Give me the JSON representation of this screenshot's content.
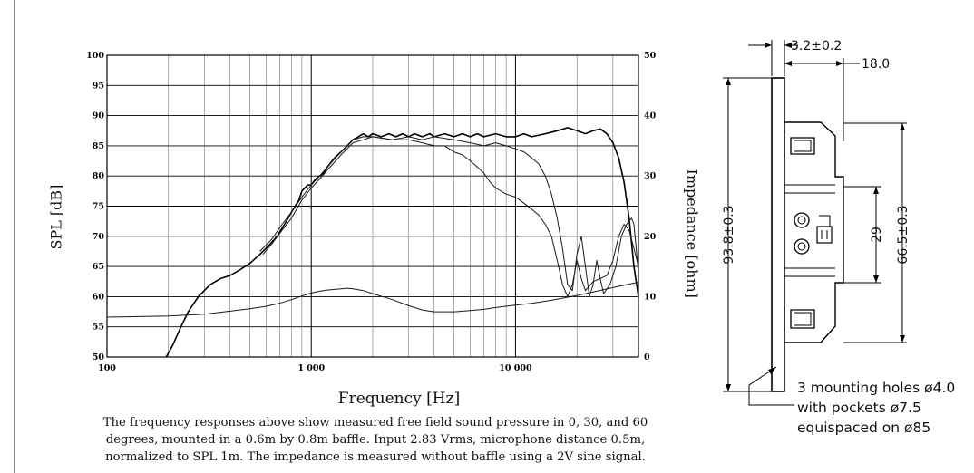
{
  "chart_data": {
    "type": "line",
    "xlabel": "Frequency [Hz]",
    "ylabel": "SPL [dB]",
    "y2label": "Impedance [ohm]",
    "x_scale": "log",
    "xlim": [
      100,
      40000
    ],
    "ylim": [
      50,
      100
    ],
    "y2lim": [
      0,
      50
    ],
    "grid": true,
    "x_ticks": [
      "100",
      "1 000",
      "10 000"
    ],
    "x_tick_values": [
      100,
      1000,
      10000
    ],
    "y_ticks": [
      "50",
      "55",
      "60",
      "65",
      "70",
      "75",
      "80",
      "85",
      "90",
      "95",
      "100"
    ],
    "y_tick_values": [
      50,
      55,
      60,
      65,
      70,
      75,
      80,
      85,
      90,
      95,
      100
    ],
    "y2_ticks": [
      "0",
      "10",
      "20",
      "30",
      "40",
      "50"
    ],
    "y2_tick_values": [
      0,
      10,
      20,
      30,
      40,
      50
    ],
    "series": [
      {
        "axis": "left",
        "stroke": "#000000",
        "width": 1.6,
        "points": [
          [
            195,
            50
          ],
          [
            210,
            52
          ],
          [
            230,
            55
          ],
          [
            250,
            57.5
          ],
          [
            280,
            60
          ],
          [
            320,
            62
          ],
          [
            360,
            63
          ],
          [
            400,
            63.5
          ],
          [
            450,
            64.5
          ],
          [
            500,
            65.5
          ],
          [
            560,
            67
          ],
          [
            620,
            68.5
          ],
          [
            680,
            70
          ],
          [
            740,
            72
          ],
          [
            800,
            74
          ],
          [
            870,
            76
          ],
          [
            900,
            77.5
          ],
          [
            960,
            78.5
          ],
          [
            1000,
            78.5
          ],
          [
            1050,
            79.5
          ],
          [
            1100,
            80
          ],
          [
            1150,
            80.5
          ],
          [
            1200,
            81.5
          ],
          [
            1300,
            83
          ],
          [
            1400,
            84
          ],
          [
            1500,
            85
          ],
          [
            1600,
            86
          ],
          [
            1700,
            86.5
          ],
          [
            1800,
            87
          ],
          [
            1900,
            86.5
          ],
          [
            2000,
            87
          ],
          [
            2200,
            86.5
          ],
          [
            2400,
            87
          ],
          [
            2600,
            86.5
          ],
          [
            2800,
            87
          ],
          [
            3000,
            86.5
          ],
          [
            3200,
            87
          ],
          [
            3500,
            86.5
          ],
          [
            3800,
            87
          ],
          [
            4000,
            86.5
          ],
          [
            4500,
            87
          ],
          [
            5000,
            86.5
          ],
          [
            5500,
            87
          ],
          [
            6000,
            86.5
          ],
          [
            6500,
            87
          ],
          [
            7000,
            86.5
          ],
          [
            8000,
            87
          ],
          [
            9000,
            86.5
          ],
          [
            10000,
            86.5
          ],
          [
            11000,
            87
          ],
          [
            12000,
            86.5
          ],
          [
            14000,
            87
          ],
          [
            16000,
            87.5
          ],
          [
            18000,
            88
          ],
          [
            20000,
            87.5
          ],
          [
            22000,
            87
          ],
          [
            24000,
            87.5
          ],
          [
            26000,
            87.8
          ],
          [
            28000,
            87
          ],
          [
            30000,
            85.5
          ],
          [
            32000,
            83
          ],
          [
            34000,
            79
          ],
          [
            36000,
            73
          ],
          [
            38000,
            65
          ],
          [
            40000,
            60
          ]
        ]
      },
      {
        "axis": "left",
        "stroke": "#1a1a1a",
        "width": 1.0,
        "points": [
          [
            580,
            67
          ],
          [
            650,
            69
          ],
          [
            720,
            71
          ],
          [
            800,
            73
          ],
          [
            900,
            76
          ],
          [
            1000,
            78
          ],
          [
            1100,
            79.5
          ],
          [
            1200,
            81
          ],
          [
            1400,
            83.5
          ],
          [
            1600,
            85.5
          ],
          [
            1800,
            86
          ],
          [
            2000,
            86.5
          ],
          [
            2500,
            86
          ],
          [
            3000,
            86.5
          ],
          [
            3500,
            86
          ],
          [
            4000,
            86.5
          ],
          [
            5000,
            86
          ],
          [
            6000,
            85.5
          ],
          [
            7000,
            85
          ],
          [
            8000,
            85.5
          ],
          [
            9000,
            85
          ],
          [
            10000,
            84.5
          ],
          [
            11000,
            84
          ],
          [
            12000,
            83
          ],
          [
            13000,
            82
          ],
          [
            14000,
            80
          ],
          [
            15000,
            77
          ],
          [
            16000,
            73
          ],
          [
            17000,
            68
          ],
          [
            18000,
            62
          ],
          [
            19000,
            61
          ],
          [
            20000,
            67
          ],
          [
            21000,
            70
          ],
          [
            22000,
            65
          ],
          [
            23000,
            60
          ],
          [
            24000,
            62
          ],
          [
            25000,
            66
          ],
          [
            26000,
            63
          ],
          [
            27000,
            60.5
          ],
          [
            29000,
            62
          ],
          [
            31000,
            65
          ],
          [
            33000,
            70
          ],
          [
            35000,
            72
          ],
          [
            37000,
            73
          ],
          [
            38000,
            72
          ],
          [
            40000,
            64
          ]
        ]
      },
      {
        "axis": "left",
        "stroke": "#1a1a1a",
        "width": 1.0,
        "points": [
          [
            560,
            67.5
          ],
          [
            640,
            69.5
          ],
          [
            720,
            72
          ],
          [
            800,
            74
          ],
          [
            900,
            76.5
          ],
          [
            1000,
            78.5
          ],
          [
            1100,
            80
          ],
          [
            1200,
            81.5
          ],
          [
            1400,
            84
          ],
          [
            1600,
            86
          ],
          [
            1800,
            86.5
          ],
          [
            2000,
            86.5
          ],
          [
            2500,
            86
          ],
          [
            3000,
            86
          ],
          [
            3500,
            85.5
          ],
          [
            4000,
            85
          ],
          [
            4500,
            85
          ],
          [
            5000,
            84
          ],
          [
            5500,
            83.5
          ],
          [
            6000,
            82.5
          ],
          [
            6500,
            81.5
          ],
          [
            7000,
            80.5
          ],
          [
            7500,
            79
          ],
          [
            8000,
            78
          ],
          [
            9000,
            77
          ],
          [
            10000,
            76.5
          ],
          [
            11000,
            75.5
          ],
          [
            12000,
            74.5
          ],
          [
            13000,
            73.5
          ],
          [
            14000,
            72
          ],
          [
            15000,
            70
          ],
          [
            16000,
            66
          ],
          [
            17000,
            62
          ],
          [
            18000,
            60
          ],
          [
            19000,
            62
          ],
          [
            20000,
            66
          ],
          [
            21000,
            63
          ],
          [
            22000,
            61
          ],
          [
            24000,
            62.5
          ],
          [
            26000,
            63
          ],
          [
            28000,
            63.5
          ],
          [
            30000,
            66
          ],
          [
            32000,
            70
          ],
          [
            34000,
            72
          ],
          [
            36000,
            71
          ],
          [
            38000,
            68
          ],
          [
            40000,
            65
          ]
        ]
      },
      {
        "axis": "right",
        "stroke": "#1a1a1a",
        "width": 1.0,
        "points": [
          [
            100,
            6.6
          ],
          [
            200,
            6.8
          ],
          [
            300,
            7.1
          ],
          [
            400,
            7.6
          ],
          [
            500,
            8.0
          ],
          [
            600,
            8.4
          ],
          [
            700,
            8.9
          ],
          [
            800,
            9.5
          ],
          [
            900,
            10.1
          ],
          [
            1000,
            10.6
          ],
          [
            1100,
            10.9
          ],
          [
            1200,
            11.1
          ],
          [
            1400,
            11.3
          ],
          [
            1500,
            11.4
          ],
          [
            1600,
            11.3
          ],
          [
            1800,
            11.0
          ],
          [
            2000,
            10.5
          ],
          [
            2500,
            9.5
          ],
          [
            3000,
            8.5
          ],
          [
            3500,
            7.8
          ],
          [
            4000,
            7.5
          ],
          [
            5000,
            7.5
          ],
          [
            6000,
            7.7
          ],
          [
            7000,
            7.9
          ],
          [
            8000,
            8.2
          ],
          [
            10000,
            8.6
          ],
          [
            12000,
            8.9
          ],
          [
            15000,
            9.4
          ],
          [
            20000,
            10.2
          ],
          [
            25000,
            10.9
          ],
          [
            30000,
            11.5
          ],
          [
            35000,
            12.0
          ],
          [
            40000,
            12.4
          ]
        ]
      }
    ]
  },
  "caption": "The frequency responses above show measured free field sound pressure in 0, 30, and 60 degrees, mounted in a 0.6m by 0.8m baffle. Input 2.83 Vrms, microphone distance 0.5m, normalized to SPL 1m. The impedance is measured without baffle using a 2V sine signal.",
  "drawing": {
    "dim_flange": "3.2±0.2",
    "dim_depth": "18.0",
    "dim_height": "93.8±0.3",
    "dim_body": "66.5±0.3",
    "dim_hole_spacing": "29",
    "note_line1": "3 mounting holes ø4.0",
    "note_line2": "with pockets ø7.5",
    "note_line3": "equispaced on ø85"
  }
}
